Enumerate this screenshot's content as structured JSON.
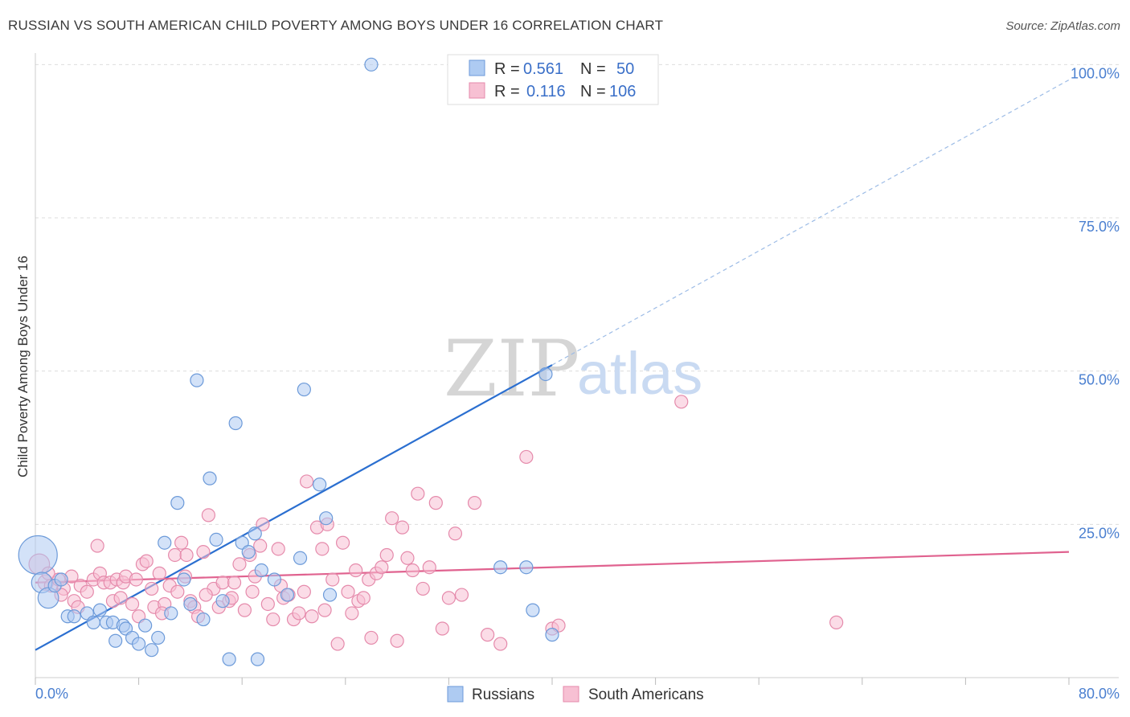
{
  "header": {
    "title": "RUSSIAN VS SOUTH AMERICAN CHILD POVERTY AMONG BOYS UNDER 16 CORRELATION CHART",
    "source": "Source: ZipAtlas.com"
  },
  "watermark": {
    "zip": "ZIP",
    "atlas": "atlas"
  },
  "legend": {
    "rows": [
      {
        "r_label": "R =",
        "r_value": "0.561",
        "n_label": "N =",
        "n_value": "50"
      },
      {
        "r_label": "R =",
        "r_value": "0.116",
        "n_label": "N =",
        "n_value": "106"
      }
    ]
  },
  "bottom_legend": {
    "russians": "Russians",
    "south_americans": "South Americans"
  },
  "colors": {
    "russians_fill": "#aecbf2",
    "russians_stroke": "#6c9ad9",
    "russians_line": "#2b6fd0",
    "south_fill": "#f7c0d3",
    "south_stroke": "#e58aab",
    "south_line": "#e0628f",
    "grid": "#dddddd",
    "axis_text": "#4a7fd0"
  },
  "chart_data": {
    "type": "scatter",
    "xlabel": "",
    "ylabel": "Child Poverty Among Boys Under 16",
    "xlim": [
      0,
      80
    ],
    "ylim": [
      0,
      100
    ],
    "x_tick_labels": {
      "left": "0.0%",
      "right": "80.0%"
    },
    "y_ticks": [
      {
        "value": 25,
        "label": "25.0%"
      },
      {
        "value": 50,
        "label": "50.0%"
      },
      {
        "value": 75,
        "label": "75.0%"
      },
      {
        "value": 100,
        "label": "100.0%"
      }
    ],
    "series": [
      {
        "name": "Russians",
        "r": 0.561,
        "n": 50,
        "trend": {
          "x0": 0,
          "y0": 4.5,
          "x1": 40,
          "y1": 51.0,
          "dash_to_x": 80,
          "dash_to_y": 97.5
        },
        "points": [
          [
            0.2,
            20,
            3
          ],
          [
            0.5,
            15.5,
            1.6
          ],
          [
            1,
            13,
            1.6
          ],
          [
            1.5,
            15,
            1
          ],
          [
            2,
            16,
            1
          ],
          [
            2.5,
            10,
            1
          ],
          [
            3,
            10,
            1
          ],
          [
            4,
            10.5,
            1
          ],
          [
            4.5,
            9,
            1
          ],
          [
            5,
            11,
            1
          ],
          [
            5.5,
            9,
            1
          ],
          [
            6,
            9,
            1
          ],
          [
            6.2,
            6,
            1
          ],
          [
            6.8,
            8.5,
            1
          ],
          [
            7,
            8,
            1
          ],
          [
            7.5,
            6.5,
            1
          ],
          [
            8,
            5.5,
            1
          ],
          [
            8.5,
            8.5,
            1
          ],
          [
            9,
            4.5,
            1
          ],
          [
            9.5,
            6.5,
            1
          ],
          [
            10,
            22,
            1
          ],
          [
            10.5,
            10.5,
            1
          ],
          [
            11,
            28.5,
            1
          ],
          [
            11.5,
            16,
            1
          ],
          [
            12,
            12,
            1
          ],
          [
            12.5,
            48.5,
            1
          ],
          [
            13,
            9.5,
            1
          ],
          [
            13.5,
            32.5,
            1
          ],
          [
            14,
            22.5,
            1
          ],
          [
            14.5,
            12.5,
            1
          ],
          [
            15,
            3,
            1
          ],
          [
            15.5,
            41.5,
            1
          ],
          [
            16,
            22,
            1
          ],
          [
            16.5,
            20.5,
            1
          ],
          [
            17,
            23.5,
            1
          ],
          [
            17.2,
            3,
            1
          ],
          [
            17.5,
            17.5,
            1
          ],
          [
            18.5,
            16,
            1
          ],
          [
            19.5,
            13.5,
            1
          ],
          [
            20.5,
            19.5,
            1
          ],
          [
            20.8,
            47,
            1
          ],
          [
            22,
            31.5,
            1
          ],
          [
            22.5,
            26,
            1
          ],
          [
            22.8,
            13.5,
            1
          ],
          [
            26,
            100,
            1
          ],
          [
            36,
            18,
            1
          ],
          [
            38,
            18,
            1
          ],
          [
            38.5,
            11,
            1
          ],
          [
            39.5,
            49.5,
            1
          ],
          [
            40,
            7,
            1
          ]
        ]
      },
      {
        "name": "South Americans",
        "r": 0.116,
        "n": 106,
        "trend": {
          "x0": 0,
          "y0": 15.5,
          "x1": 80,
          "y1": 20.5
        },
        "points": [
          [
            0.3,
            18.5,
            1.6
          ],
          [
            0.8,
            15.5,
            1.2
          ],
          [
            1.2,
            15,
            1
          ],
          [
            1.8,
            16,
            1
          ],
          [
            2.2,
            14.5,
            1
          ],
          [
            2.8,
            16.5,
            1
          ],
          [
            3,
            12.5,
            1
          ],
          [
            3.5,
            15,
            1
          ],
          [
            4,
            14,
            1
          ],
          [
            4.5,
            16,
            1
          ],
          [
            4.8,
            21.5,
            1
          ],
          [
            5,
            17,
            1
          ],
          [
            5.3,
            15.5,
            1
          ],
          [
            5.8,
            15.5,
            1
          ],
          [
            6,
            12.5,
            1
          ],
          [
            6.3,
            16,
            1
          ],
          [
            6.8,
            15.5,
            1
          ],
          [
            7,
            16.5,
            1
          ],
          [
            7.5,
            12,
            1
          ],
          [
            7.8,
            16,
            1
          ],
          [
            8,
            10,
            1
          ],
          [
            8.3,
            18.5,
            1
          ],
          [
            8.6,
            19,
            1
          ],
          [
            9,
            14.5,
            1
          ],
          [
            9.2,
            11.5,
            1
          ],
          [
            9.6,
            17,
            1
          ],
          [
            10,
            12,
            1
          ],
          [
            10.4,
            15,
            1
          ],
          [
            10.8,
            20,
            1
          ],
          [
            11,
            14,
            1
          ],
          [
            11.3,
            22,
            1
          ],
          [
            11.7,
            20,
            1
          ],
          [
            12,
            12.5,
            1
          ],
          [
            12.3,
            11.5,
            1
          ],
          [
            12.6,
            10,
            1
          ],
          [
            13,
            20.5,
            1
          ],
          [
            13.4,
            26.5,
            1
          ],
          [
            13.8,
            14.5,
            1
          ],
          [
            14.2,
            11.5,
            1
          ],
          [
            14.5,
            15.5,
            1
          ],
          [
            15,
            12.5,
            1
          ],
          [
            15.4,
            15.5,
            1
          ],
          [
            15.8,
            18.5,
            1
          ],
          [
            16.2,
            11,
            1
          ],
          [
            16.6,
            20,
            1
          ],
          [
            17,
            16.5,
            1
          ],
          [
            17.4,
            21.5,
            1
          ],
          [
            17.6,
            25,
            1
          ],
          [
            18,
            12,
            1
          ],
          [
            18.4,
            9.5,
            1
          ],
          [
            18.8,
            21,
            1
          ],
          [
            19.2,
            13,
            1
          ],
          [
            19.6,
            13.5,
            1
          ],
          [
            20,
            9.5,
            1
          ],
          [
            20.4,
            10.5,
            1
          ],
          [
            20.8,
            14,
            1
          ],
          [
            21,
            32,
            1
          ],
          [
            21.4,
            10,
            1
          ],
          [
            21.8,
            24.5,
            1
          ],
          [
            22.2,
            21,
            1
          ],
          [
            22.6,
            25,
            1
          ],
          [
            23,
            16,
            1
          ],
          [
            23.4,
            5.5,
            1
          ],
          [
            23.8,
            22,
            1
          ],
          [
            24.2,
            14,
            1
          ],
          [
            24.5,
            10.5,
            1
          ],
          [
            25,
            12.5,
            1
          ],
          [
            25.4,
            13,
            1
          ],
          [
            25.8,
            16,
            1
          ],
          [
            26,
            6.5,
            1
          ],
          [
            26.4,
            17,
            1
          ],
          [
            26.8,
            18,
            1
          ],
          [
            27.2,
            20,
            1
          ],
          [
            27.6,
            26,
            1
          ],
          [
            28,
            6,
            1
          ],
          [
            28.4,
            24.5,
            1
          ],
          [
            28.8,
            19.5,
            1
          ],
          [
            29.2,
            17.5,
            1
          ],
          [
            29.6,
            30,
            1
          ],
          [
            30,
            14.5,
            1
          ],
          [
            30.5,
            18,
            1
          ],
          [
            31,
            28.5,
            1
          ],
          [
            31.5,
            8,
            1
          ],
          [
            32,
            13,
            1
          ],
          [
            32.5,
            23.5,
            1
          ],
          [
            33,
            13.5,
            1
          ],
          [
            34,
            28.5,
            1
          ],
          [
            35,
            7,
            1
          ],
          [
            36,
            5.5,
            1
          ],
          [
            38,
            36,
            1
          ],
          [
            40,
            8,
            1
          ],
          [
            40.5,
            8.5,
            1
          ],
          [
            50,
            45,
            1
          ],
          [
            62,
            9,
            1
          ],
          [
            1,
            17,
            1
          ],
          [
            2,
            13.5,
            1
          ],
          [
            3.3,
            11.5,
            1
          ],
          [
            6.6,
            13,
            1
          ],
          [
            9.8,
            10.5,
            1
          ],
          [
            11.6,
            16.5,
            1
          ],
          [
            13.2,
            13.5,
            1
          ],
          [
            15.2,
            13,
            1
          ],
          [
            16.8,
            14,
            1
          ],
          [
            19,
            15,
            1
          ],
          [
            22.4,
            11,
            1
          ],
          [
            24.8,
            17.5,
            1
          ]
        ]
      }
    ]
  }
}
